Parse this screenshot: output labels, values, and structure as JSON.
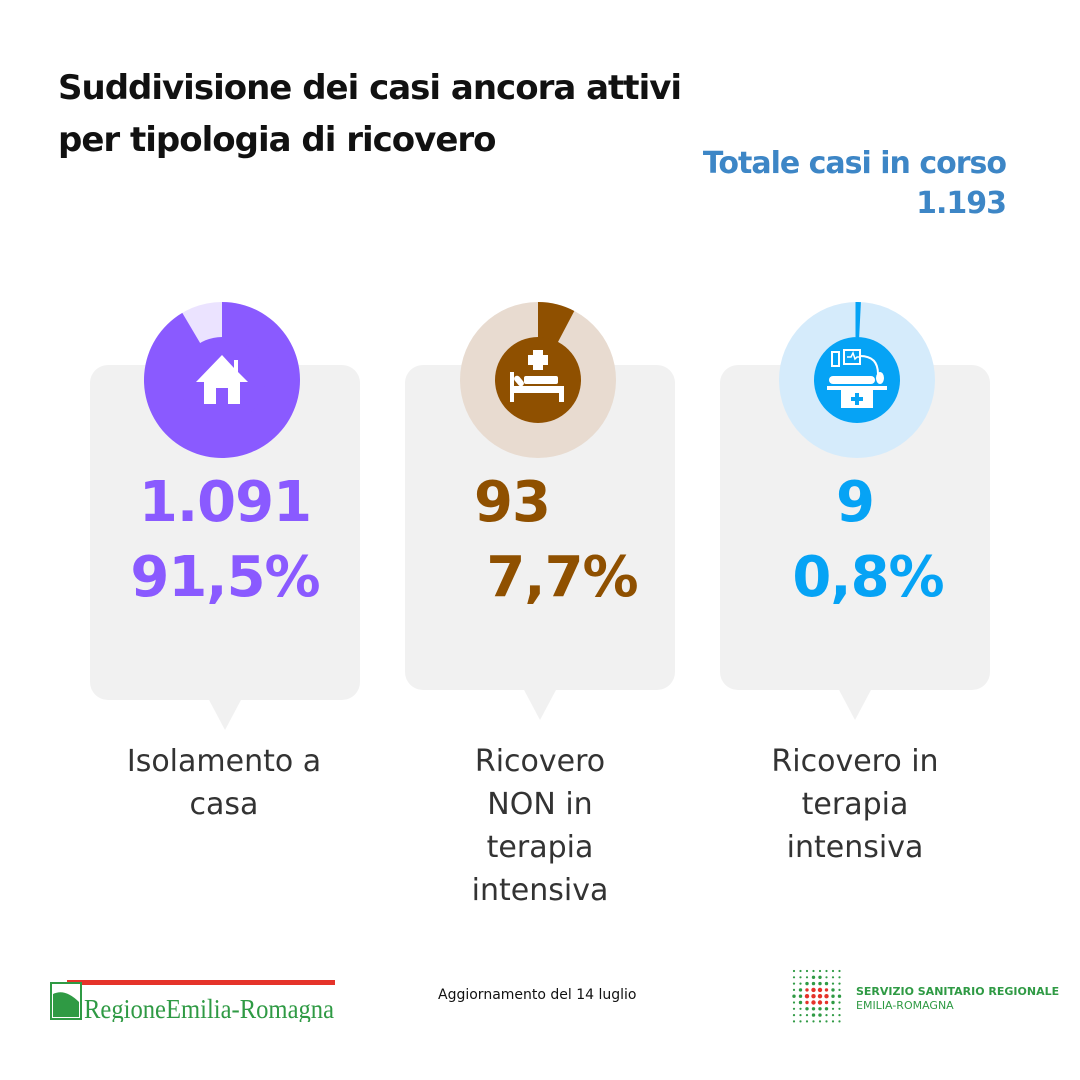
{
  "title": [
    "Suddivisione dei casi ancora attivi",
    "per tipologia di ricovero"
  ],
  "total": {
    "label": "Totale casi in corso",
    "value": "1.193"
  },
  "categories": [
    {
      "count": "1.091",
      "percent": "91,5%",
      "fraction": 0.915,
      "label": [
        "Isolamento a",
        "casa"
      ],
      "color": "#8a5aff",
      "light": "#ebe3ff",
      "icon": "house-icon"
    },
    {
      "count": "93",
      "percent": "7,7%",
      "fraction": 0.077,
      "label": [
        "Ricovero",
        "NON in",
        "terapia",
        "intensiva"
      ],
      "color": "#8f5000",
      "light": "#e8dbd0",
      "icon": "hospital-bed-icon"
    },
    {
      "count": "9",
      "percent": "0,8%",
      "fraction": 0.008,
      "label": [
        "Ricovero in",
        "terapia",
        "intensiva"
      ],
      "color": "#06a3f5",
      "light": "#d5ebfb",
      "icon": "intensive-care-icon"
    }
  ],
  "footer": {
    "logo_left": "RegioneEmilia-Romagna",
    "date": "Aggiornamento del 14 luglio",
    "ssr_line1": "SERVIZIO SANITARIO REGIONALE",
    "ssr_line2": "EMILIA-ROMAGNA"
  }
}
